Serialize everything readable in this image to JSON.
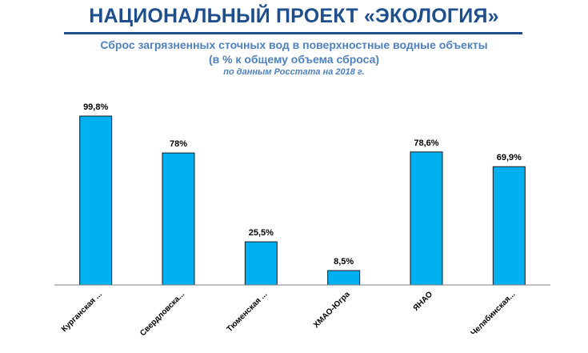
{
  "header": {
    "title": "НАЦИОНАЛЬНЫЙ ПРОЕКТ «ЭКОЛОГИЯ»",
    "subtitle_line1": "Сброс загрязненных сточных вод в поверхностные водные объекты",
    "subtitle_line2": "(в % к общему объема сброса)",
    "source_note": "по данным Росстата на 2018 г."
  },
  "colors": {
    "title": "#1f4e8c",
    "subtitle": "#4f81bd",
    "bar_fill": "#00b0f0",
    "bar_stroke": "#1a1a1a",
    "axis": "#7f7f7f"
  },
  "chart_data": {
    "type": "bar",
    "title": "",
    "xlabel": "",
    "ylabel": "",
    "grid": false,
    "legend": "none",
    "ylim": [
      0,
      100
    ],
    "categories": [
      "Курганская ...",
      "Свердловска...",
      "Тюменская ...",
      "ХМАО-Югра",
      "ЯНАО",
      "Челябинская..."
    ],
    "values": [
      99.8,
      78,
      25.5,
      8.5,
      78.6,
      69.9
    ],
    "data_labels": [
      "99,8%",
      "78%",
      "25,5%",
      "8,5%",
      "78,6%",
      "69,9%"
    ]
  }
}
